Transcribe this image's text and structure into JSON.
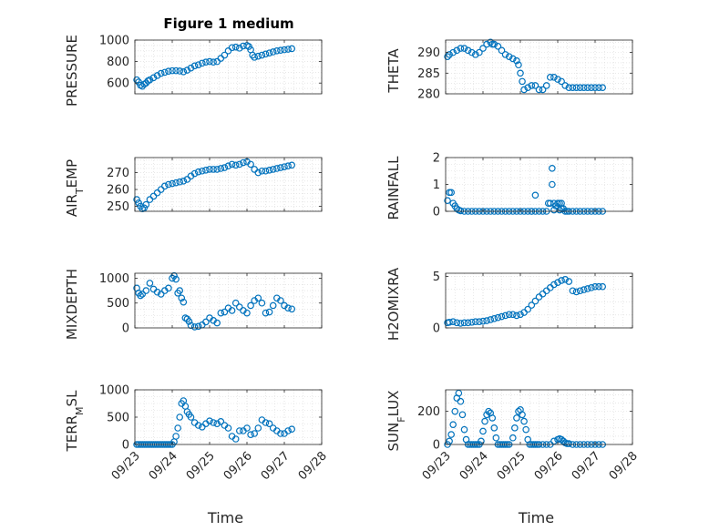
{
  "figure": {
    "title": "Figure 1 medium",
    "marker_color": "#0072bd"
  },
  "chart_data": [
    {
      "type": "scatter",
      "ylabel": "PRESSURE",
      "xlabel": "",
      "grid": true,
      "ylim": [
        500,
        1000
      ],
      "yticks": [
        600,
        800,
        1000
      ],
      "xlim": [
        0,
        5
      ],
      "x": [
        0.05,
        0.1,
        0.15,
        0.2,
        0.25,
        0.3,
        0.35,
        0.4,
        0.5,
        0.6,
        0.7,
        0.8,
        0.9,
        1.0,
        1.1,
        1.2,
        1.3,
        1.4,
        1.5,
        1.6,
        1.7,
        1.8,
        1.9,
        2.0,
        2.1,
        2.2,
        2.3,
        2.4,
        2.5,
        2.6,
        2.7,
        2.8,
        2.9,
        3.0,
        3.05,
        3.1,
        3.15,
        3.2,
        3.3,
        3.4,
        3.5,
        3.6,
        3.7,
        3.8,
        3.9,
        4.0,
        4.1,
        4.2
      ],
      "y": [
        630,
        610,
        580,
        570,
        590,
        600,
        620,
        630,
        650,
        670,
        690,
        700,
        710,
        715,
        715,
        712,
        705,
        720,
        740,
        760,
        770,
        785,
        795,
        800,
        795,
        800,
        830,
        860,
        900,
        930,
        935,
        925,
        945,
        950,
        940,
        910,
        860,
        840,
        850,
        860,
        870,
        880,
        890,
        900,
        905,
        910,
        915,
        920
      ]
    },
    {
      "type": "scatter",
      "ylabel": "THETA",
      "xlabel": "",
      "grid": true,
      "ylim": [
        280,
        293
      ],
      "yticks": [
        280,
        285,
        290
      ],
      "xlim": [
        0,
        5
      ],
      "x": [
        0.05,
        0.1,
        0.2,
        0.3,
        0.4,
        0.5,
        0.6,
        0.7,
        0.8,
        0.9,
        1.0,
        1.1,
        1.2,
        1.25,
        1.3,
        1.4,
        1.5,
        1.6,
        1.7,
        1.8,
        1.9,
        1.95,
        2.0,
        2.05,
        2.1,
        2.2,
        2.3,
        2.4,
        2.5,
        2.6,
        2.7,
        2.8,
        2.9,
        3.0,
        3.1,
        3.2,
        3.3,
        3.4,
        3.5,
        3.6,
        3.7,
        3.8,
        3.9,
        4.0,
        4.1,
        4.2
      ],
      "y": [
        289,
        289.5,
        290,
        290.5,
        291,
        291,
        290.5,
        290,
        289.5,
        290,
        291,
        292,
        292.5,
        292,
        292,
        291.5,
        290.5,
        289.5,
        289,
        288.5,
        288,
        287,
        285,
        283,
        281,
        281.5,
        282,
        282,
        281,
        281,
        282,
        284,
        284,
        283.5,
        283,
        282,
        281.5,
        281.5,
        281.5,
        281.5,
        281.5,
        281.5,
        281.5,
        281.5,
        281.5,
        281.5
      ]
    },
    {
      "type": "scatter",
      "ylabel": "AIR_TEMP",
      "xlabel": "",
      "grid": true,
      "ylim": [
        247,
        279
      ],
      "yticks": [
        250,
        260,
        270
      ],
      "xlim": [
        0,
        5
      ],
      "x": [
        0.05,
        0.1,
        0.15,
        0.2,
        0.25,
        0.3,
        0.4,
        0.5,
        0.6,
        0.7,
        0.8,
        0.9,
        1.0,
        1.1,
        1.2,
        1.3,
        1.4,
        1.5,
        1.6,
        1.7,
        1.8,
        1.9,
        2.0,
        2.1,
        2.2,
        2.3,
        2.4,
        2.5,
        2.6,
        2.7,
        2.8,
        2.9,
        3.0,
        3.1,
        3.2,
        3.3,
        3.4,
        3.5,
        3.6,
        3.7,
        3.8,
        3.9,
        4.0,
        4.1,
        4.2
      ],
      "y": [
        254,
        252,
        250,
        248.5,
        249,
        251,
        254,
        256,
        258,
        260,
        262,
        263,
        263.5,
        264,
        264.5,
        265,
        266,
        268,
        269.5,
        270.5,
        271,
        271.5,
        272,
        272,
        272,
        272.5,
        273,
        274,
        275,
        274.5,
        275,
        276,
        276.5,
        275,
        272,
        270,
        271,
        271,
        271.5,
        272,
        272.5,
        273,
        273.5,
        274,
        274.5
      ]
    },
    {
      "type": "scatter",
      "ylabel": "RAINFALL",
      "xlabel": "",
      "grid": true,
      "ylim": [
        0,
        2
      ],
      "yticks": [
        0,
        1,
        2
      ],
      "xlim": [
        0,
        5
      ],
      "x": [
        0.05,
        0.1,
        0.15,
        0.2,
        0.25,
        0.3,
        0.35,
        0.4,
        0.5,
        0.6,
        0.7,
        0.8,
        0.9,
        1.0,
        1.1,
        1.2,
        1.3,
        1.4,
        1.5,
        1.6,
        1.7,
        1.8,
        1.9,
        2.0,
        2.1,
        2.2,
        2.3,
        2.4,
        2.5,
        2.6,
        2.7,
        2.75,
        2.8,
        2.85,
        2.9,
        2.95,
        3.0,
        3.05,
        3.1,
        3.15,
        3.2,
        3.25,
        3.3,
        3.4,
        3.5,
        3.6,
        3.7,
        3.8,
        3.9,
        4.0,
        4.1,
        4.2,
        2.3,
        2.4,
        2.85,
        2.9,
        3.05,
        3.1
      ],
      "y": [
        0.4,
        0.7,
        0.7,
        0.3,
        0.2,
        0.1,
        0.05,
        0.02,
        0,
        0,
        0,
        0,
        0,
        0,
        0,
        0,
        0,
        0,
        0,
        0,
        0,
        0,
        0,
        0,
        0,
        0,
        0,
        0,
        0,
        0,
        0,
        0.3,
        0.3,
        1.6,
        0.3,
        0.2,
        0.3,
        0.3,
        0.3,
        0.1,
        0,
        0,
        0,
        0,
        0,
        0,
        0,
        0,
        0,
        0,
        0,
        0,
        0,
        0.6,
        1.0,
        0.05,
        0.05,
        0.1
      ]
    },
    {
      "type": "scatter",
      "ylabel": "MIXDEPTH",
      "xlabel": "",
      "grid": true,
      "ylim": [
        0,
        1100
      ],
      "yticks": [
        0,
        500,
        1000
      ],
      "xlim": [
        0,
        5
      ],
      "x": [
        0.05,
        0.1,
        0.15,
        0.2,
        0.3,
        0.4,
        0.5,
        0.6,
        0.7,
        0.8,
        0.9,
        1.0,
        1.05,
        1.1,
        1.15,
        1.2,
        1.25,
        1.3,
        1.35,
        1.4,
        1.45,
        1.5,
        1.6,
        1.7,
        1.8,
        1.9,
        2.0,
        2.1,
        2.2,
        2.3,
        2.4,
        2.5,
        2.6,
        2.7,
        2.8,
        2.9,
        3.0,
        3.1,
        3.2,
        3.3,
        3.4,
        3.5,
        3.6,
        3.7,
        3.8,
        3.9,
        4.0,
        4.1,
        4.2
      ],
      "y": [
        800,
        700,
        650,
        680,
        750,
        900,
        780,
        720,
        680,
        750,
        800,
        1000,
        1050,
        980,
        700,
        750,
        600,
        520,
        200,
        180,
        130,
        50,
        20,
        30,
        60,
        120,
        200,
        150,
        100,
        300,
        320,
        400,
        350,
        500,
        420,
        350,
        300,
        450,
        550,
        600,
        500,
        300,
        320,
        450,
        600,
        550,
        450,
        400,
        380
      ]
    },
    {
      "type": "scatter",
      "ylabel": "H2OMIXRA",
      "xlabel": "",
      "grid": true,
      "ylim": [
        0,
        5.3
      ],
      "yticks": [
        0,
        5
      ],
      "xlim": [
        0,
        5
      ],
      "x": [
        0.05,
        0.1,
        0.2,
        0.3,
        0.4,
        0.5,
        0.6,
        0.7,
        0.8,
        0.9,
        1.0,
        1.1,
        1.2,
        1.3,
        1.4,
        1.5,
        1.6,
        1.7,
        1.8,
        1.9,
        2.0,
        2.1,
        2.2,
        2.3,
        2.4,
        2.5,
        2.6,
        2.7,
        2.8,
        2.9,
        3.0,
        3.1,
        3.2,
        3.3,
        3.4,
        3.5,
        3.6,
        3.7,
        3.8,
        3.9,
        4.0,
        4.1,
        4.2
      ],
      "y": [
        0.5,
        0.55,
        0.6,
        0.5,
        0.45,
        0.5,
        0.5,
        0.55,
        0.6,
        0.6,
        0.65,
        0.7,
        0.8,
        0.9,
        1.0,
        1.1,
        1.2,
        1.3,
        1.3,
        1.2,
        1.3,
        1.5,
        1.8,
        2.2,
        2.6,
        3.0,
        3.3,
        3.6,
        3.9,
        4.2,
        4.4,
        4.6,
        4.7,
        4.5,
        3.6,
        3.5,
        3.6,
        3.7,
        3.8,
        3.9,
        4.0,
        4.0,
        4.0
      ]
    },
    {
      "type": "scatter",
      "ylabel": "TERR_MSL",
      "xlabel": "Time",
      "grid": true,
      "ylim": [
        0,
        1000
      ],
      "yticks": [
        0,
        500,
        1000
      ],
      "xlim": [
        0,
        5
      ],
      "xticks": [
        "09/23",
        "09/24",
        "09/25",
        "09/26",
        "09/27",
        "09/28"
      ],
      "x": [
        0.05,
        0.1,
        0.15,
        0.2,
        0.25,
        0.3,
        0.35,
        0.4,
        0.45,
        0.5,
        0.55,
        0.6,
        0.65,
        0.7,
        0.75,
        0.8,
        0.85,
        0.9,
        0.95,
        1.0,
        1.05,
        1.1,
        1.15,
        1.2,
        1.25,
        1.3,
        1.35,
        1.4,
        1.45,
        1.5,
        1.6,
        1.7,
        1.8,
        1.9,
        2.0,
        2.1,
        2.2,
        2.3,
        2.4,
        2.5,
        2.6,
        2.7,
        2.8,
        2.9,
        3.0,
        3.1,
        3.2,
        3.3,
        3.4,
        3.5,
        3.6,
        3.7,
        3.8,
        3.9,
        4.0,
        4.1,
        4.2
      ],
      "y": [
        0,
        0,
        0,
        0,
        0,
        0,
        0,
        0,
        0,
        0,
        0,
        0,
        0,
        0,
        0,
        0,
        0,
        0,
        0,
        0,
        50,
        150,
        300,
        500,
        750,
        800,
        700,
        600,
        550,
        500,
        400,
        350,
        320,
        380,
        430,
        400,
        380,
        420,
        350,
        300,
        150,
        100,
        250,
        250,
        300,
        180,
        200,
        300,
        450,
        400,
        380,
        300,
        250,
        200,
        200,
        250,
        280
      ]
    },
    {
      "type": "scatter",
      "ylabel": "SUN_FLUX",
      "xlabel": "Time",
      "grid": true,
      "ylim": [
        0,
        330
      ],
      "yticks": [
        0,
        200
      ],
      "xlim": [
        0,
        5
      ],
      "xticks": [
        "09/23",
        "09/24",
        "09/25",
        "09/26",
        "09/27",
        "09/28"
      ],
      "x": [
        0.05,
        0.1,
        0.15,
        0.2,
        0.25,
        0.3,
        0.35,
        0.4,
        0.45,
        0.5,
        0.55,
        0.6,
        0.65,
        0.7,
        0.75,
        0.8,
        0.85,
        0.9,
        0.95,
        1.0,
        1.05,
        1.1,
        1.15,
        1.2,
        1.25,
        1.3,
        1.35,
        1.4,
        1.45,
        1.5,
        1.55,
        1.6,
        1.65,
        1.7,
        1.8,
        1.85,
        1.9,
        1.95,
        2.0,
        2.05,
        2.1,
        2.15,
        2.2,
        2.25,
        2.3,
        2.35,
        2.4,
        2.45,
        2.5,
        2.6,
        2.7,
        2.8,
        2.9,
        3.0,
        3.05,
        3.1,
        3.15,
        3.2,
        3.25,
        3.3,
        3.4,
        3.5,
        3.6,
        3.7,
        3.8,
        3.9,
        4.0,
        4.1,
        4.2
      ],
      "y": [
        0,
        20,
        60,
        120,
        200,
        280,
        310,
        260,
        180,
        90,
        30,
        0,
        0,
        0,
        0,
        0,
        0,
        0,
        20,
        80,
        140,
        180,
        200,
        190,
        160,
        100,
        40,
        0,
        0,
        0,
        0,
        0,
        0,
        0,
        40,
        100,
        160,
        200,
        210,
        180,
        140,
        90,
        30,
        0,
        0,
        0,
        0,
        0,
        0,
        0,
        0,
        0,
        20,
        30,
        35,
        30,
        20,
        10,
        5,
        5,
        0,
        0,
        0,
        0,
        0,
        0,
        0,
        0,
        0
      ]
    }
  ]
}
